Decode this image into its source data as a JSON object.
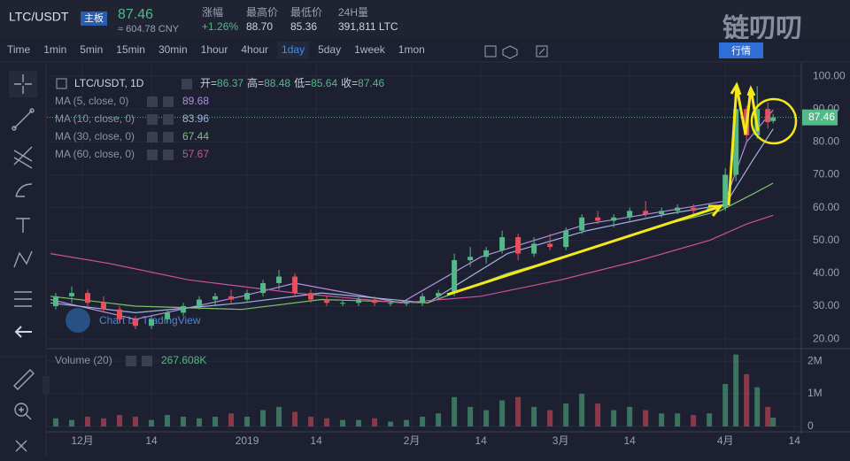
{
  "header": {
    "pair": "LTC/USDT",
    "board": "主板",
    "price": "87.46",
    "cny": "≈ 604.78 CNY",
    "stats": [
      {
        "label": "涨幅",
        "value": "+1.26%"
      },
      {
        "label": "最高价",
        "value": "88.70"
      },
      {
        "label": "最低价",
        "value": "85.36"
      },
      {
        "label": "24H量",
        "value": "391,811 LTC"
      }
    ]
  },
  "brand": {
    "logo": "链叨叨",
    "button": "行情"
  },
  "intervals": [
    "Time",
    "1min",
    "5min",
    "15min",
    "30min",
    "1hour",
    "4hour",
    "1day",
    "5day",
    "1week",
    "1mon"
  ],
  "active_interval": "1day",
  "chart_data": {
    "type": "candlestick",
    "title": "LTC/USDT, 1D",
    "ohlc_labels": [
      "开=",
      "高=",
      "低=",
      "收="
    ],
    "watermark": "Chart by TradingView",
    "up_color": "#53b987",
    "down_color": "#eb4d5c",
    "x": [
      -5,
      -2,
      1,
      4,
      7,
      10,
      13,
      16,
      19,
      22,
      25,
      28,
      31,
      34,
      37,
      40,
      43,
      46,
      49,
      52,
      55,
      58,
      61,
      64,
      67,
      70,
      73,
      76,
      79,
      82,
      85,
      88,
      91,
      94,
      97,
      100,
      103,
      106,
      109,
      112,
      115,
      118,
      121,
      123,
      125,
      127,
      129,
      130
    ],
    "open": [
      30,
      33,
      34,
      31,
      29,
      26,
      24,
      26,
      28,
      30,
      32,
      33,
      32,
      34,
      37,
      39,
      34,
      32,
      31,
      31,
      32,
      31,
      31,
      31,
      33,
      34,
      44,
      45,
      47,
      51,
      46,
      49,
      48,
      53,
      57,
      56,
      57,
      59,
      58,
      59,
      60,
      59,
      60,
      70,
      90,
      82,
      90,
      86.37
    ],
    "high": [
      34,
      36,
      35,
      33,
      30,
      27,
      27,
      29,
      31,
      33,
      34,
      35,
      35,
      38,
      41,
      40,
      35,
      33,
      32,
      33,
      33,
      32,
      32,
      34,
      35,
      46,
      48,
      48,
      53,
      52,
      51,
      52,
      54,
      58,
      59,
      58,
      60,
      62,
      60,
      61,
      61,
      61,
      72,
      97,
      91,
      97,
      92,
      88.48
    ],
    "low": [
      29,
      31,
      30,
      28,
      25,
      23,
      23,
      25,
      27,
      29,
      30,
      31,
      31,
      33,
      35,
      33,
      31,
      30,
      30,
      30,
      30,
      30,
      30,
      30,
      32,
      33,
      42,
      43,
      46,
      44,
      45,
      47,
      47,
      52,
      55,
      54,
      56,
      57,
      57,
      58,
      58,
      59,
      59,
      68,
      80,
      81,
      84,
      85.64
    ],
    "close": [
      33,
      34,
      31,
      29,
      26,
      24,
      26,
      28,
      30,
      32,
      33,
      32,
      34,
      37,
      39,
      34,
      32,
      31,
      31,
      32,
      31,
      31,
      31,
      33,
      34,
      44,
      45,
      47,
      51,
      46,
      49,
      48,
      53,
      57,
      56,
      57,
      59,
      58,
      59,
      60,
      59,
      60,
      70,
      90,
      82,
      90,
      86,
      87.46
    ],
    "volume": [
      250000,
      200000,
      300000,
      250000,
      350000,
      300000,
      200000,
      350000,
      300000,
      250000,
      300000,
      400000,
      300000,
      500000,
      600000,
      450000,
      300000,
      250000,
      200000,
      200000,
      250000,
      150000,
      200000,
      300000,
      400000,
      900000,
      600000,
      500000,
      800000,
      900000,
      600000,
      500000,
      700000,
      1000000,
      700000,
      500000,
      600000,
      500000,
      400000,
      400000,
      350000,
      400000,
      1300000,
      2200000,
      1600000,
      1200000,
      600000,
      267608
    ],
    "volume_title": "Volume (20)",
    "volume_label": "267.608K",
    "ma": [
      {
        "name": "MA (5, close, 0)",
        "color": "#b48ee0",
        "x": [
          -6,
          10,
          30,
          40,
          60,
          75,
          95,
          110,
          121,
          125,
          130
        ],
        "values": [
          32,
          26,
          33,
          37,
          31,
          45,
          55,
          59,
          62,
          80,
          89.68
        ]
      },
      {
        "name": "MA (10, close, 0)",
        "color": "#9fb4e0",
        "x": [
          -6,
          10,
          30,
          45,
          65,
          80,
          95,
          110,
          121,
          126,
          130
        ],
        "values": [
          31,
          28,
          31,
          34,
          31,
          46,
          53,
          58,
          61,
          74,
          83.96
        ]
      },
      {
        "name": "MA (30, close, 0)",
        "color": "#7ec46a",
        "x": [
          -6,
          10,
          30,
          45,
          65,
          80,
          95,
          110,
          120,
          126,
          130
        ],
        "values": [
          33,
          30,
          29,
          32,
          31,
          40,
          47,
          55,
          59,
          64,
          67.44
        ]
      },
      {
        "name": "MA (60, close, 0)",
        "color": "#d0509e",
        "x": [
          -6,
          5,
          20,
          40,
          60,
          75,
          90,
          105,
          118,
          125,
          130
        ],
        "values": [
          46,
          43,
          38,
          34,
          31,
          33,
          38,
          44,
          50,
          55,
          57.67
        ]
      }
    ],
    "xlim": [
      -6,
      135.3
    ],
    "xticks": [
      {
        "value": 0,
        "label": "12月"
      },
      {
        "value": 13,
        "label": "14"
      },
      {
        "value": 31,
        "label": "2019"
      },
      {
        "value": 44,
        "label": "14"
      },
      {
        "value": 62,
        "label": "2月"
      },
      {
        "value": 75,
        "label": "14"
      },
      {
        "value": 90,
        "label": "3月"
      },
      {
        "value": 103,
        "label": "14"
      },
      {
        "value": 121,
        "label": "4月"
      },
      {
        "value": 134,
        "label": "14"
      }
    ],
    "ylim": [
      17.6,
      103
    ],
    "yticks": [
      {
        "value": 20,
        "label": "20.00"
      },
      {
        "value": 30,
        "label": "30.00"
      },
      {
        "value": 40,
        "label": "40.00"
      },
      {
        "value": 50,
        "label": "50.00"
      },
      {
        "value": 60,
        "label": "60.00"
      },
      {
        "value": 70,
        "label": "70.00"
      },
      {
        "value": 80,
        "label": "80.00"
      },
      {
        "value": 90,
        "label": "90.00"
      },
      {
        "value": 100,
        "label": "100.00"
      }
    ],
    "vlim": [
      0,
      2300000
    ],
    "vticks": [
      0,
      {
        "value": 1000000,
        "label": "1M"
      },
      {
        "value": 2000000,
        "label": "2M"
      }
    ],
    "grid": true
  }
}
